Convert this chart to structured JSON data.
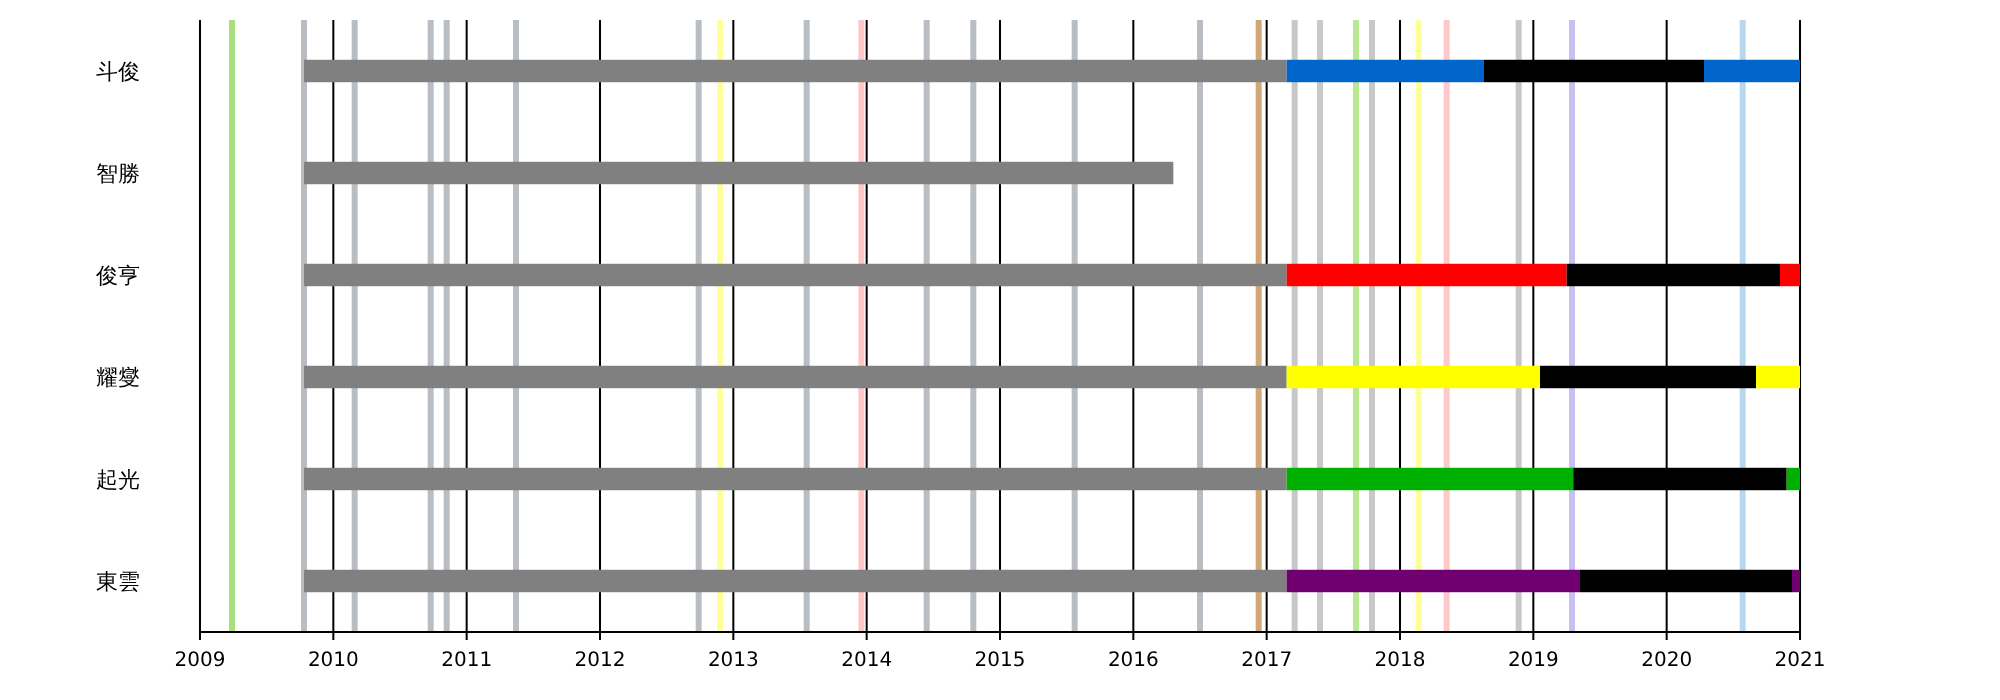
{
  "chart_data": {
    "type": "bar",
    "orientation": "horizontal",
    "categories": [
      "斗俊",
      "智勝",
      "俊亨",
      "耀燮",
      "起光",
      "東雲"
    ],
    "series": [
      {
        "colors": [
          "#808080",
          "#808080",
          "#808080",
          "#808080",
          "#808080",
          "#808080"
        ],
        "base": [
          2009.78,
          2009.78,
          2009.78,
          2009.78,
          2009.78,
          2009.78
        ],
        "values": [
          7.37,
          6.52,
          7.37,
          7.37,
          7.37,
          7.37
        ]
      },
      {
        "colors": [
          "#0066cc",
          null,
          "#ff0000",
          "#ffff00",
          "#00b000",
          "#700070"
        ],
        "base": [
          2017.15,
          null,
          2017.15,
          2017.15,
          2017.15,
          2017.15
        ],
        "values": [
          1.48,
          null,
          2.1,
          1.9,
          2.15,
          2.2
        ]
      },
      {
        "colors": [
          "#000000",
          null,
          "#000000",
          "#000000",
          "#000000",
          "#000000"
        ],
        "base": [
          2018.63,
          null,
          2019.25,
          2019.05,
          2019.3,
          2019.35
        ],
        "values": [
          1.65,
          null,
          1.6,
          1.62,
          1.6,
          1.59
        ]
      },
      {
        "colors": [
          "#0066cc",
          null,
          "#ff0000",
          "#ffff00",
          "#00b000",
          "#700070"
        ],
        "base": [
          2020.28,
          null,
          2020.85,
          2020.67,
          2020.9,
          2020.94
        ],
        "values": [
          0.72,
          null,
          0.15,
          0.33,
          0.1,
          0.06
        ]
      }
    ],
    "xlim": [
      2009,
      2021
    ],
    "xticks": [
      2009,
      2010,
      2011,
      2012,
      2013,
      2014,
      2015,
      2016,
      2017,
      2018,
      2019,
      2020,
      2021
    ],
    "grid": "x",
    "ref_lines": [
      {
        "axis": "x",
        "value": 2009.24,
        "color": "#a8e080"
      },
      {
        "axis": "x",
        "value": 2009.78,
        "color": "#b8bec4"
      },
      {
        "axis": "x",
        "value": 2010.16,
        "color": "#b8bec4"
      },
      {
        "axis": "x",
        "value": 2010.73,
        "color": "#b8bec4"
      },
      {
        "axis": "x",
        "value": 2010.85,
        "color": "#b8bec4"
      },
      {
        "axis": "x",
        "value": 2011.37,
        "color": "#b8bec4"
      },
      {
        "axis": "x",
        "value": 2012.74,
        "color": "#b8bec4"
      },
      {
        "axis": "x",
        "value": 2012.9,
        "color": "#ffff99"
      },
      {
        "axis": "x",
        "value": 2013.55,
        "color": "#b8bec4"
      },
      {
        "axis": "x",
        "value": 2013.96,
        "color": "#ffc8c8"
      },
      {
        "axis": "x",
        "value": 2014.45,
        "color": "#b8bec4"
      },
      {
        "axis": "x",
        "value": 2014.8,
        "color": "#b8bec4"
      },
      {
        "axis": "x",
        "value": 2015.56,
        "color": "#b8bec4"
      },
      {
        "axis": "x",
        "value": 2016.5,
        "color": "#b8bec4"
      },
      {
        "axis": "x",
        "value": 2016.94,
        "color": "#d0a878"
      },
      {
        "axis": "x",
        "value": 2017.21,
        "color": "#c8c8c8"
      },
      {
        "axis": "x",
        "value": 2017.4,
        "color": "#c8c8c8"
      },
      {
        "axis": "x",
        "value": 2017.67,
        "color": "#b8e890"
      },
      {
        "axis": "x",
        "value": 2017.79,
        "color": "#c8c8c8"
      },
      {
        "axis": "x",
        "value": 2018.14,
        "color": "#ffff99"
      },
      {
        "axis": "x",
        "value": 2018.35,
        "color": "#ffc8c8"
      },
      {
        "axis": "x",
        "value": 2018.89,
        "color": "#c8c8c8"
      },
      {
        "axis": "x",
        "value": 2019.29,
        "color": "#c8c0f0"
      },
      {
        "axis": "x",
        "value": 2020.57,
        "color": "#b8d8f0"
      }
    ]
  }
}
